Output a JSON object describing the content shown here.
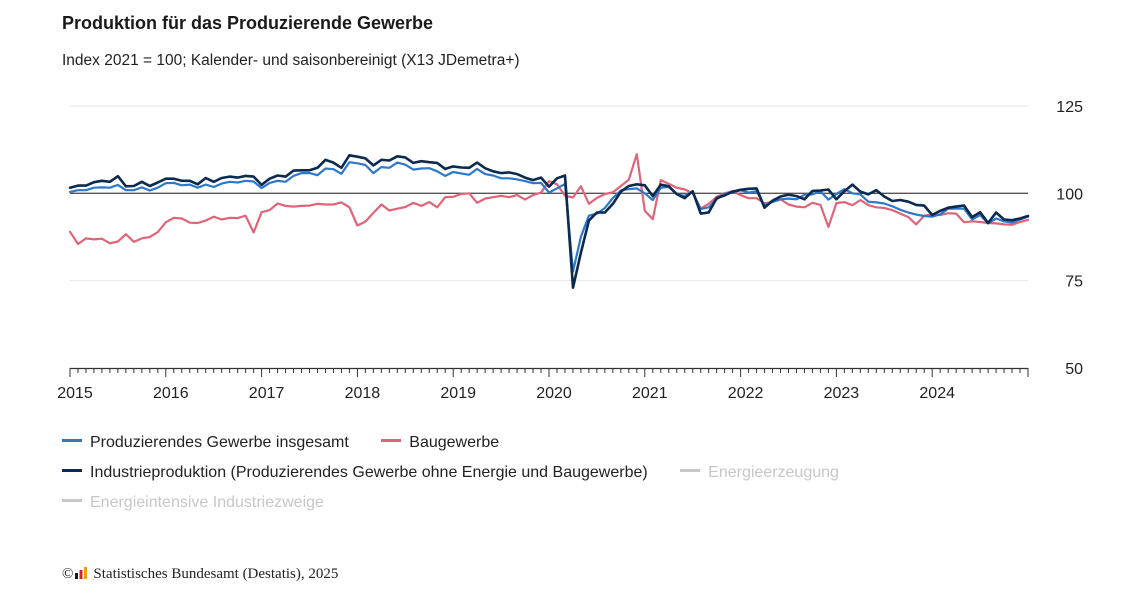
{
  "header": {
    "title": "Produktion für das Produzierende Gewerbe",
    "subtitle": "Index 2021 = 100; Kalender- und saisonbereinigt (X13 JDemetra+)"
  },
  "legend": {
    "items": [
      {
        "label": "Produzierendes Gewerbe insgesamt",
        "color": "#2e78c9",
        "active": true
      },
      {
        "label": "Baugewerbe",
        "color": "#e06478",
        "active": true
      },
      {
        "label": "Industrieproduktion (Produzierendes Gewerbe ohne Energie und Baugewerbe)",
        "color": "#0b2a4f",
        "active": true
      },
      {
        "label": "Energieerzeugung",
        "color": "#c7c7c7",
        "active": false
      },
      {
        "label": "Energieintensive Industriezweige",
        "color": "#c7c7c7",
        "active": false
      }
    ]
  },
  "footer": {
    "copyright_symbol": "©",
    "source": "Statistisches Bundesamt (Destatis), 2025"
  },
  "chart_data": {
    "type": "line",
    "title": "Produktion für das Produzierende Gewerbe",
    "subtitle": "Index 2021 = 100; Kalender- und saisonbereinigt (X13 JDemetra+)",
    "x_start": "2015-01",
    "x_frequency": "monthly",
    "x_tick_labels": [
      "2015",
      "2016",
      "2017",
      "2018",
      "2019",
      "2020",
      "2021",
      "2022",
      "2023",
      "2024"
    ],
    "y_ticks": [
      50,
      75,
      100,
      125
    ],
    "ylim": [
      50,
      125
    ],
    "reference_line": 100,
    "grid": true,
    "series": [
      {
        "name": "Produzierendes Gewerbe insgesamt",
        "color": "#2e78c9",
        "values": [
          100.4,
          100.9,
          100.9,
          101.6,
          101.7,
          101.6,
          102.4,
          100.9,
          100.9,
          101.7,
          100.8,
          101.6,
          102.9,
          103.0,
          102.3,
          102.5,
          101.6,
          102.5,
          101.8,
          102.8,
          103.3,
          103.1,
          103.6,
          103.4,
          101.5,
          103.0,
          103.6,
          103.3,
          105.0,
          105.8,
          105.8,
          105.2,
          107.1,
          106.9,
          105.6,
          108.9,
          108.6,
          108.1,
          105.8,
          107.5,
          107.3,
          108.8,
          108.2,
          106.8,
          107.1,
          107.2,
          106.3,
          105.0,
          106.1,
          105.7,
          105.3,
          107.0,
          105.5,
          105.1,
          104.3,
          104.3,
          104.0,
          103.5,
          102.9,
          103.0,
          100.2,
          101.4,
          102.7,
          77.6,
          87.6,
          93.6,
          94.2,
          95.8,
          98.7,
          100.8,
          101.2,
          101.4,
          100.0,
          98.1,
          101.6,
          101.8,
          99.7,
          99.3,
          100.3,
          95.5,
          96.0,
          98.3,
          99.9,
          100.2,
          100.9,
          100.2,
          100.6,
          96.6,
          97.5,
          98.3,
          98.5,
          98.3,
          99.6,
          99.7,
          100.6,
          98.2,
          99.8,
          101.2,
          100.0,
          99.7,
          97.6,
          97.4,
          97.1,
          96.3,
          95.3,
          94.5,
          93.9,
          93.5,
          93.3,
          94.0,
          95.6,
          95.6,
          95.6,
          92.5,
          93.8,
          91.4,
          92.8,
          92.0,
          91.6,
          92.5,
          93.3
        ]
      },
      {
        "name": "Baugewerbe",
        "color": "#e06478",
        "values": [
          89.0,
          85.5,
          87.1,
          86.8,
          87.0,
          85.7,
          86.2,
          88.3,
          86.1,
          87.1,
          87.5,
          88.9,
          91.7,
          93.0,
          92.8,
          91.6,
          91.5,
          92.2,
          93.3,
          92.5,
          93.0,
          92.9,
          93.6,
          88.8,
          94.6,
          95.2,
          97.1,
          96.4,
          96.2,
          96.4,
          96.5,
          97.0,
          96.8,
          96.8,
          97.4,
          96.0,
          90.8,
          91.9,
          94.4,
          96.8,
          95.1,
          95.6,
          96.1,
          97.3,
          96.4,
          97.5,
          96.0,
          98.9,
          99.0,
          99.8,
          100.0,
          97.3,
          98.5,
          98.9,
          99.3,
          98.9,
          99.5,
          98.2,
          99.5,
          100.2,
          103.5,
          102.6,
          99.3,
          98.8,
          102.0,
          97.0,
          98.7,
          99.8,
          100.3,
          102.1,
          103.9,
          111.2,
          95.0,
          92.6,
          103.8,
          102.7,
          101.6,
          101.1,
          100.0,
          95.7,
          97.0,
          99.0,
          100.0,
          100.6,
          99.5,
          98.6,
          98.6,
          97.1,
          97.6,
          98.3,
          96.8,
          96.2,
          96.0,
          97.3,
          96.7,
          90.4,
          97.2,
          97.5,
          96.6,
          98.1,
          96.6,
          96.0,
          95.8,
          95.2,
          94.2,
          93.2,
          91.1,
          93.6,
          94.0,
          93.8,
          94.3,
          94.2,
          91.7,
          92.0,
          91.8,
          91.5,
          91.4,
          91.1,
          91.0,
          91.8,
          92.4
        ]
      },
      {
        "name": "Industrieproduktion (Produzierendes Gewerbe ohne Energie und Baugewerbe)",
        "color": "#0b2a4f",
        "values": [
          101.6,
          102.2,
          102.2,
          103.2,
          103.6,
          103.3,
          104.9,
          102.0,
          102.1,
          103.3,
          102.1,
          103.1,
          104.2,
          104.2,
          103.6,
          103.6,
          102.6,
          104.4,
          103.3,
          104.4,
          104.8,
          104.5,
          105.0,
          104.8,
          102.4,
          104.2,
          105.1,
          104.8,
          106.5,
          106.6,
          106.6,
          107.3,
          109.6,
          108.8,
          107.3,
          110.9,
          110.5,
          110.0,
          108.0,
          109.6,
          109.4,
          110.6,
          110.3,
          108.7,
          109.2,
          108.9,
          108.7,
          107.0,
          107.7,
          107.4,
          107.3,
          108.8,
          107.2,
          106.3,
          105.8,
          106.0,
          105.5,
          104.5,
          103.8,
          104.5,
          101.9,
          104.3,
          105.1,
          73.0,
          83.0,
          92.2,
          94.5,
          94.5,
          97.0,
          100.5,
          102.1,
          102.6,
          102.3,
          99.2,
          102.5,
          102.0,
          99.8,
          98.6,
          100.6,
          94.2,
          94.5,
          98.6,
          99.4,
          100.5,
          101.0,
          101.3,
          101.4,
          95.9,
          97.9,
          99.1,
          99.6,
          99.2,
          98.3,
          100.7,
          100.8,
          101.1,
          98.3,
          100.6,
          102.5,
          100.5,
          99.7,
          100.9,
          99.1,
          97.8,
          98.1,
          97.6,
          96.7,
          96.5,
          93.8,
          95.0,
          95.9,
          96.2,
          96.5,
          93.2,
          94.6,
          91.5,
          94.5,
          92.5,
          92.3,
          92.8,
          93.5
        ]
      }
    ]
  }
}
